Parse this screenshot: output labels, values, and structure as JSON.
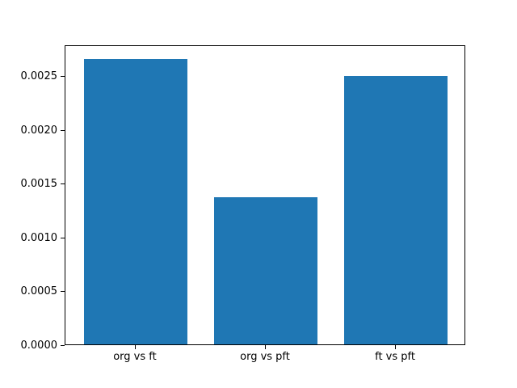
{
  "figure": {
    "background": "#ffffff",
    "frame_color": "#000000"
  },
  "chart_data": {
    "type": "bar",
    "title": "",
    "xlabel": "",
    "ylabel": "",
    "categories": [
      "org vs ft",
      "org vs pft",
      "ft vs pft"
    ],
    "values": [
      0.00266,
      0.00137,
      0.0025
    ],
    "bar_color": "#1f77b4",
    "bar_width": 0.8,
    "xlim": [
      -0.54,
      2.54
    ],
    "ylim": [
      0,
      0.002793
    ],
    "yticks": {
      "values": [
        0.0,
        0.0005,
        0.001,
        0.0015,
        0.002,
        0.0025
      ],
      "labels": [
        "0.0000",
        "0.0005",
        "0.0010",
        "0.0015",
        "0.0020",
        "0.0025"
      ]
    },
    "grid": false,
    "legend": "none"
  }
}
